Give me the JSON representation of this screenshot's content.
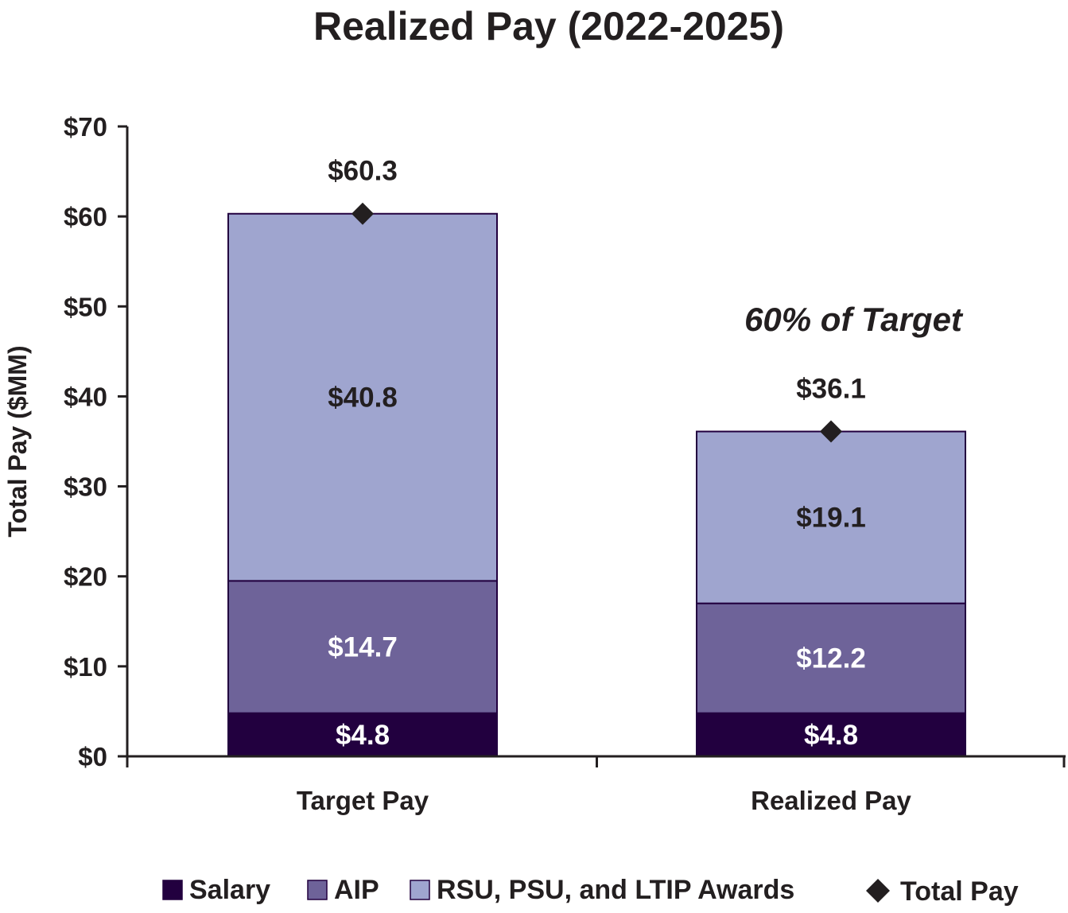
{
  "chart_data": {
    "type": "bar",
    "stacked": true,
    "title": "Realized Pay (2022-2025)",
    "xlabel": "",
    "ylabel": "Total Pay ($MM)",
    "ylim": [
      0,
      70
    ],
    "yticks": [
      0,
      10,
      20,
      30,
      40,
      50,
      60,
      70
    ],
    "ytick_labels": [
      "$0",
      "$10",
      "$20",
      "$30",
      "$40",
      "$50",
      "$60",
      "$70"
    ],
    "categories": [
      "Target Pay",
      "Realized Pay"
    ],
    "series": [
      {
        "name": "Salary",
        "values": [
          4.8,
          4.8
        ],
        "labels": [
          "$4.8",
          "$4.8"
        ],
        "color": "#22003f",
        "label_color": "#ffffff"
      },
      {
        "name": "AIP",
        "values": [
          14.7,
          12.2
        ],
        "labels": [
          "$14.7",
          "$12.2"
        ],
        "color": "#6e6399",
        "label_color": "#ffffff"
      },
      {
        "name": "RSU, PSU, and LTIP Awards",
        "values": [
          40.8,
          19.1
        ],
        "labels": [
          "$40.8",
          "$19.1"
        ],
        "color": "#9fa5cf",
        "label_color": "#231f20"
      }
    ],
    "totals": {
      "name": "Total Pay",
      "values": [
        60.3,
        36.1
      ],
      "labels": [
        "$60.3",
        "$36.1"
      ],
      "marker": "diamond",
      "color": "#231f20"
    },
    "annotations": [
      {
        "text": "60% of Target",
        "category": "Realized Pay"
      }
    ],
    "legend": {
      "position": "bottom",
      "items": [
        {
          "label": "Salary",
          "marker": "square",
          "color": "#22003f"
        },
        {
          "label": "AIP",
          "marker": "square",
          "color": "#6e6399"
        },
        {
          "label": "RSU, PSU, and LTIP Awards",
          "marker": "square",
          "color": "#9fa5cf"
        },
        {
          "label": "Total Pay",
          "marker": "diamond",
          "color": "#231f20"
        }
      ]
    },
    "grid": false
  }
}
